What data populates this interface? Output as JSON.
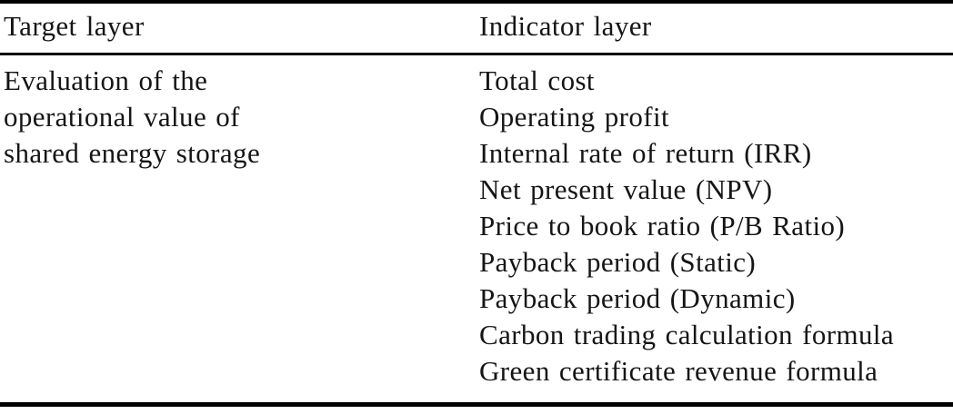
{
  "table": {
    "headers": [
      "Target layer",
      "Indicator layer"
    ],
    "target_layer_lines": [
      "Evaluation of the",
      "operational value of",
      "shared energy storage"
    ],
    "indicators": [
      "Total cost",
      "Operating profit",
      "Internal rate of return (IRR)",
      "Net present value (NPV)",
      "Price to book ratio (P/B Ratio)",
      "Payback period (Static)",
      "Payback period (Dynamic)",
      "Carbon trading calculation formula",
      "Green certificate revenue formula"
    ],
    "colors": {
      "text": "#151515",
      "rule": "#000000",
      "background": "#ffffff"
    }
  }
}
